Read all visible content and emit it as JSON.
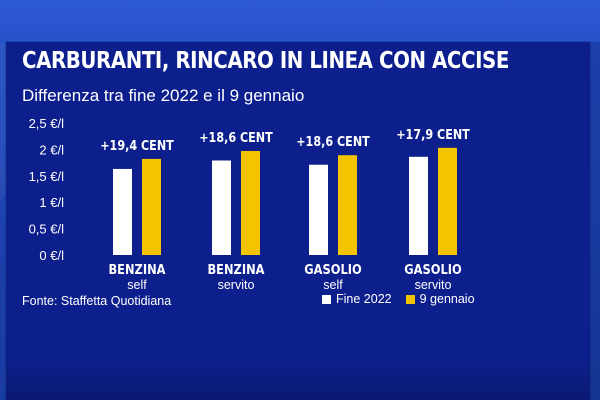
{
  "header": {
    "title": "CARBURANTI, RINCARO IN LINEA CON ACCISE",
    "subtitle": "Differenza tra fine 2022 e il 9 gennaio"
  },
  "source": "Fonte: Staffetta Quotidiana",
  "colors": {
    "fine_2022": "#ffffff",
    "gennaio": "#f5c400",
    "panel": "#0d1f8c"
  },
  "chart_data": {
    "type": "bar",
    "title": "CARBURANTI, RINCARO IN LINEA CON ACCISE",
    "subtitle": "Differenza tra fine 2022 e il 9 gennaio",
    "xlabel": "",
    "ylabel": "",
    "ylim": [
      0,
      2.5
    ],
    "y_ticks": [
      {
        "value": 0,
        "label": "0 €/l"
      },
      {
        "value": 0.5,
        "label": "0,5 €/l"
      },
      {
        "value": 1,
        "label": "1 €/l"
      },
      {
        "value": 1.5,
        "label": "1,5 €/l"
      },
      {
        "value": 2,
        "label": "2 €/l"
      },
      {
        "value": 2.5,
        "label": "2,5 €/l"
      }
    ],
    "categories": [
      {
        "name": "BENZINA",
        "sub": "self"
      },
      {
        "name": "BENZINA",
        "sub": "servito"
      },
      {
        "name": "GASOLIO",
        "sub": "self"
      },
      {
        "name": "GASOLIO",
        "sub": "servito"
      }
    ],
    "series": [
      {
        "name": "Fine 2022",
        "color": "#ffffff",
        "values": [
          1.63,
          1.79,
          1.71,
          1.86
        ]
      },
      {
        "name": "9 gennaio",
        "color": "#f5c400",
        "values": [
          1.82,
          1.97,
          1.89,
          2.03
        ]
      }
    ],
    "annotations": [
      "+19,4 CENT",
      "+18,6 CENT",
      "+18,6 CENT",
      "+17,9 CENT"
    ],
    "legend": "bottom-right"
  }
}
